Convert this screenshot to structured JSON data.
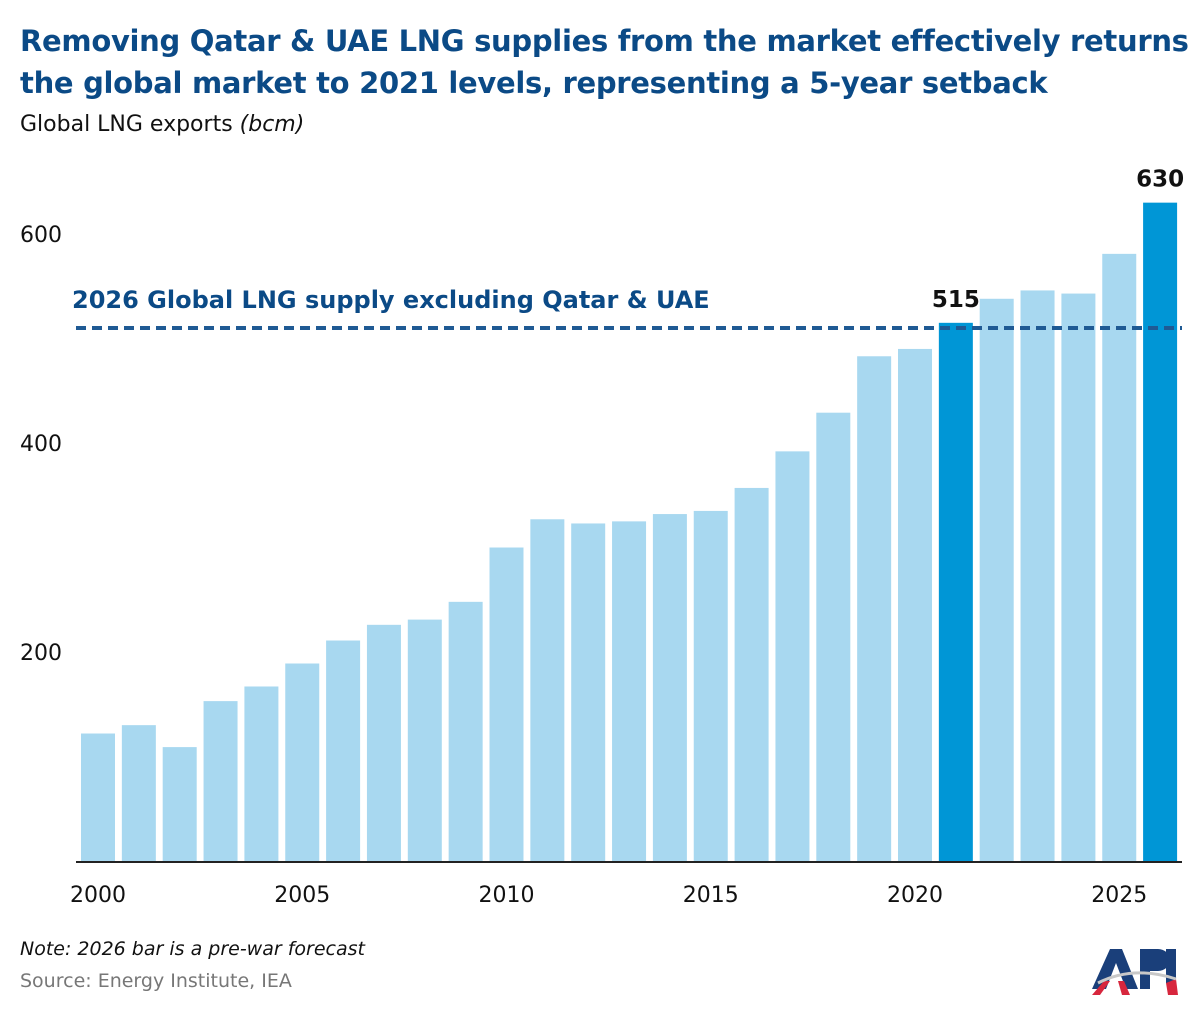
{
  "header": {
    "title": "Removing Qatar & UAE LNG supplies from the market effectively returns the global market to 2021 levels, representing a 5-year setback",
    "subtitle_main": "Global LNG exports ",
    "subtitle_unit": "(bcm)"
  },
  "footer": {
    "note": "Note: 2026 bar is a pre-war forecast",
    "source": "Source: Energy Institute, IEA",
    "logo_text": "API"
  },
  "chart_data": {
    "type": "bar",
    "title": "Removing Qatar & UAE LNG supplies from the market effectively returns the global market to 2021 levels, representing a 5-year setback",
    "ylabel": "Global LNG exports (bcm)",
    "categories": [
      2000,
      2001,
      2002,
      2003,
      2004,
      2005,
      2006,
      2007,
      2008,
      2009,
      2010,
      2011,
      2012,
      2013,
      2014,
      2015,
      2016,
      2017,
      2018,
      2019,
      2020,
      2021,
      2022,
      2023,
      2024,
      2025,
      2026
    ],
    "values": [
      122,
      130,
      109,
      153,
      167,
      189,
      211,
      226,
      231,
      248,
      300,
      327,
      323,
      325,
      332,
      335,
      357,
      392,
      429,
      483,
      490,
      515,
      538,
      546,
      543,
      581,
      630
    ],
    "highlighted": [
      2021,
      2026
    ],
    "data_labels": [
      {
        "category": 2021,
        "text": "515"
      },
      {
        "category": 2026,
        "text": "630"
      }
    ],
    "yticks": [
      200,
      400,
      600
    ],
    "xticks": [
      2000,
      2005,
      2010,
      2015,
      2020,
      2025
    ],
    "ylim": [
      0,
      650
    ],
    "grid": false,
    "reference_line": {
      "value": 510,
      "label": "2026 Global LNG supply excluding Qatar & UAE",
      "style": "dashed"
    },
    "colors": {
      "bar": "#a8d8f0",
      "highlight": "#0096d6",
      "reference": "#1f5a94",
      "title": "#0b4a86"
    }
  }
}
